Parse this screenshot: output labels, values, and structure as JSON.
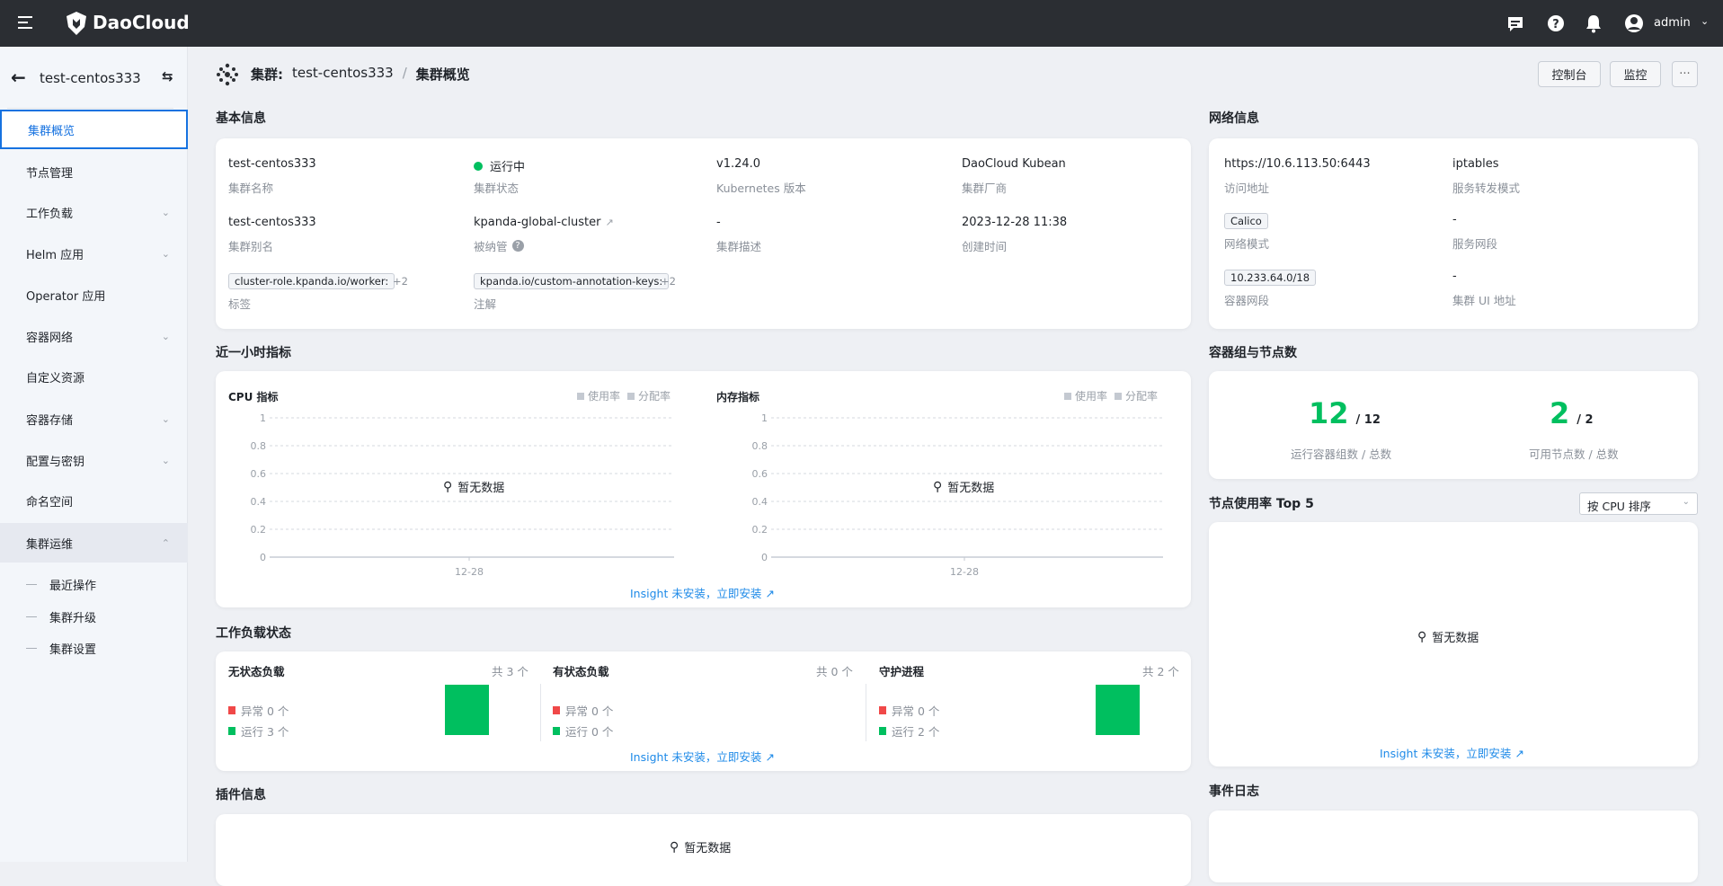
{
  "topbar": {
    "brand": "DaoCloud",
    "user": "admin"
  },
  "sidebar": {
    "cluster": "test-centos333",
    "items": [
      {
        "label": "集群概览",
        "selected": true
      },
      {
        "label": "节点管理"
      },
      {
        "label": "工作负载",
        "expandable": true
      },
      {
        "label": "Helm 应用",
        "expandable": true
      },
      {
        "label": "Operator 应用"
      },
      {
        "label": "容器网络",
        "expandable": true
      },
      {
        "label": "自定义资源"
      },
      {
        "label": "容器存储",
        "expandable": true
      },
      {
        "label": "配置与密钥",
        "expandable": true
      },
      {
        "label": "命名空间"
      },
      {
        "label": "集群运维",
        "expanded": true
      }
    ],
    "subitems": [
      "最近操作",
      "集群升级",
      "集群设置"
    ]
  },
  "breadcrumb": {
    "prefix": "集群:",
    "cluster": "test-centos333",
    "sep": "/",
    "current": "集群概览"
  },
  "actions": {
    "console": "控制台",
    "monitor": "监控",
    "more": "···"
  },
  "basic": {
    "title": "基本信息",
    "name": {
      "value": "test-centos333",
      "label": "集群名称"
    },
    "status": {
      "value": "运行中",
      "label": "集群状态",
      "color": "#00bf5f"
    },
    "version": {
      "value": "v1.24.0",
      "label": "Kubernetes 版本"
    },
    "vendor": {
      "value": "DaoCloud Kubean",
      "label": "集群厂商"
    },
    "alias": {
      "value": "test-centos333",
      "label": "集群别名"
    },
    "managed": {
      "value": "kpanda-global-cluster",
      "label": "被纳管"
    },
    "desc": {
      "value": "-",
      "label": "集群描述"
    },
    "created": {
      "value": "2023-12-28 11:38",
      "label": "创建时间"
    },
    "labels": {
      "tag": "cluster-role.kpanda.io/worker:",
      "more": "+2",
      "label": "标签"
    },
    "annotations": {
      "tag": "kpanda.io/custom-annotation-keys:",
      "more": "+2",
      "label": "注解"
    }
  },
  "network": {
    "title": "网络信息",
    "address": {
      "value": "https://10.6.113.50:6443",
      "label": "访问地址"
    },
    "proxy": {
      "value": "iptables",
      "label": "服务转发模式"
    },
    "mode": {
      "value": "Calico",
      "label": "网络模式"
    },
    "svc": {
      "value": "-",
      "label": "服务网段"
    },
    "pod": {
      "value": "10.233.64.0/18",
      "label": "容器网段"
    },
    "ui": {
      "value": "-",
      "label": "集群 UI 地址"
    }
  },
  "metrics": {
    "title": "近一小时指标",
    "legend": [
      "使用率",
      "分配率"
    ],
    "charts": [
      {
        "title": "CPU 指标"
      },
      {
        "title": "内存指标"
      }
    ],
    "yticks": [
      "1",
      "0.8",
      "0.6",
      "0.4",
      "0.2",
      "0"
    ],
    "xtick": "12-28",
    "empty": "暂无数据",
    "insight": "Insight 未安装，立即安装"
  },
  "counts": {
    "title": "容器组与节点数",
    "pods": {
      "running": "12",
      "total": "/ 12",
      "label": "运行容器组数 / 总数"
    },
    "nodes": {
      "running": "2",
      "total": "/ 2",
      "label": "可用节点数 / 总数"
    },
    "accent": "#00bf5f"
  },
  "top5": {
    "title": "节点使用率 Top 5",
    "sort": "按 CPU 排序",
    "empty": "暂无数据",
    "insight": "Insight 未安装，立即安装"
  },
  "workload": {
    "title": "工作负载状态",
    "cols": [
      {
        "title": "无状态负载",
        "total": "共 3 个",
        "error": "异常 0 个",
        "running": "运行 3 个",
        "running_count": 3,
        "error_count": 0
      },
      {
        "title": "有状态负载",
        "total": "共 0 个",
        "error": "异常 0 个",
        "running": "运行 0 个",
        "running_count": 0,
        "error_count": 0
      },
      {
        "title": "守护进程",
        "total": "共 2 个",
        "error": "异常 0 个",
        "running": "运行 2 个",
        "running_count": 2,
        "error_count": 0
      }
    ],
    "colors": {
      "error": "#f04848",
      "running": "#00bf5f"
    },
    "insight": "Insight 未安装，立即安装"
  },
  "plugins": {
    "title": "插件信息",
    "empty": "暂无数据"
  },
  "events": {
    "title": "事件日志"
  }
}
